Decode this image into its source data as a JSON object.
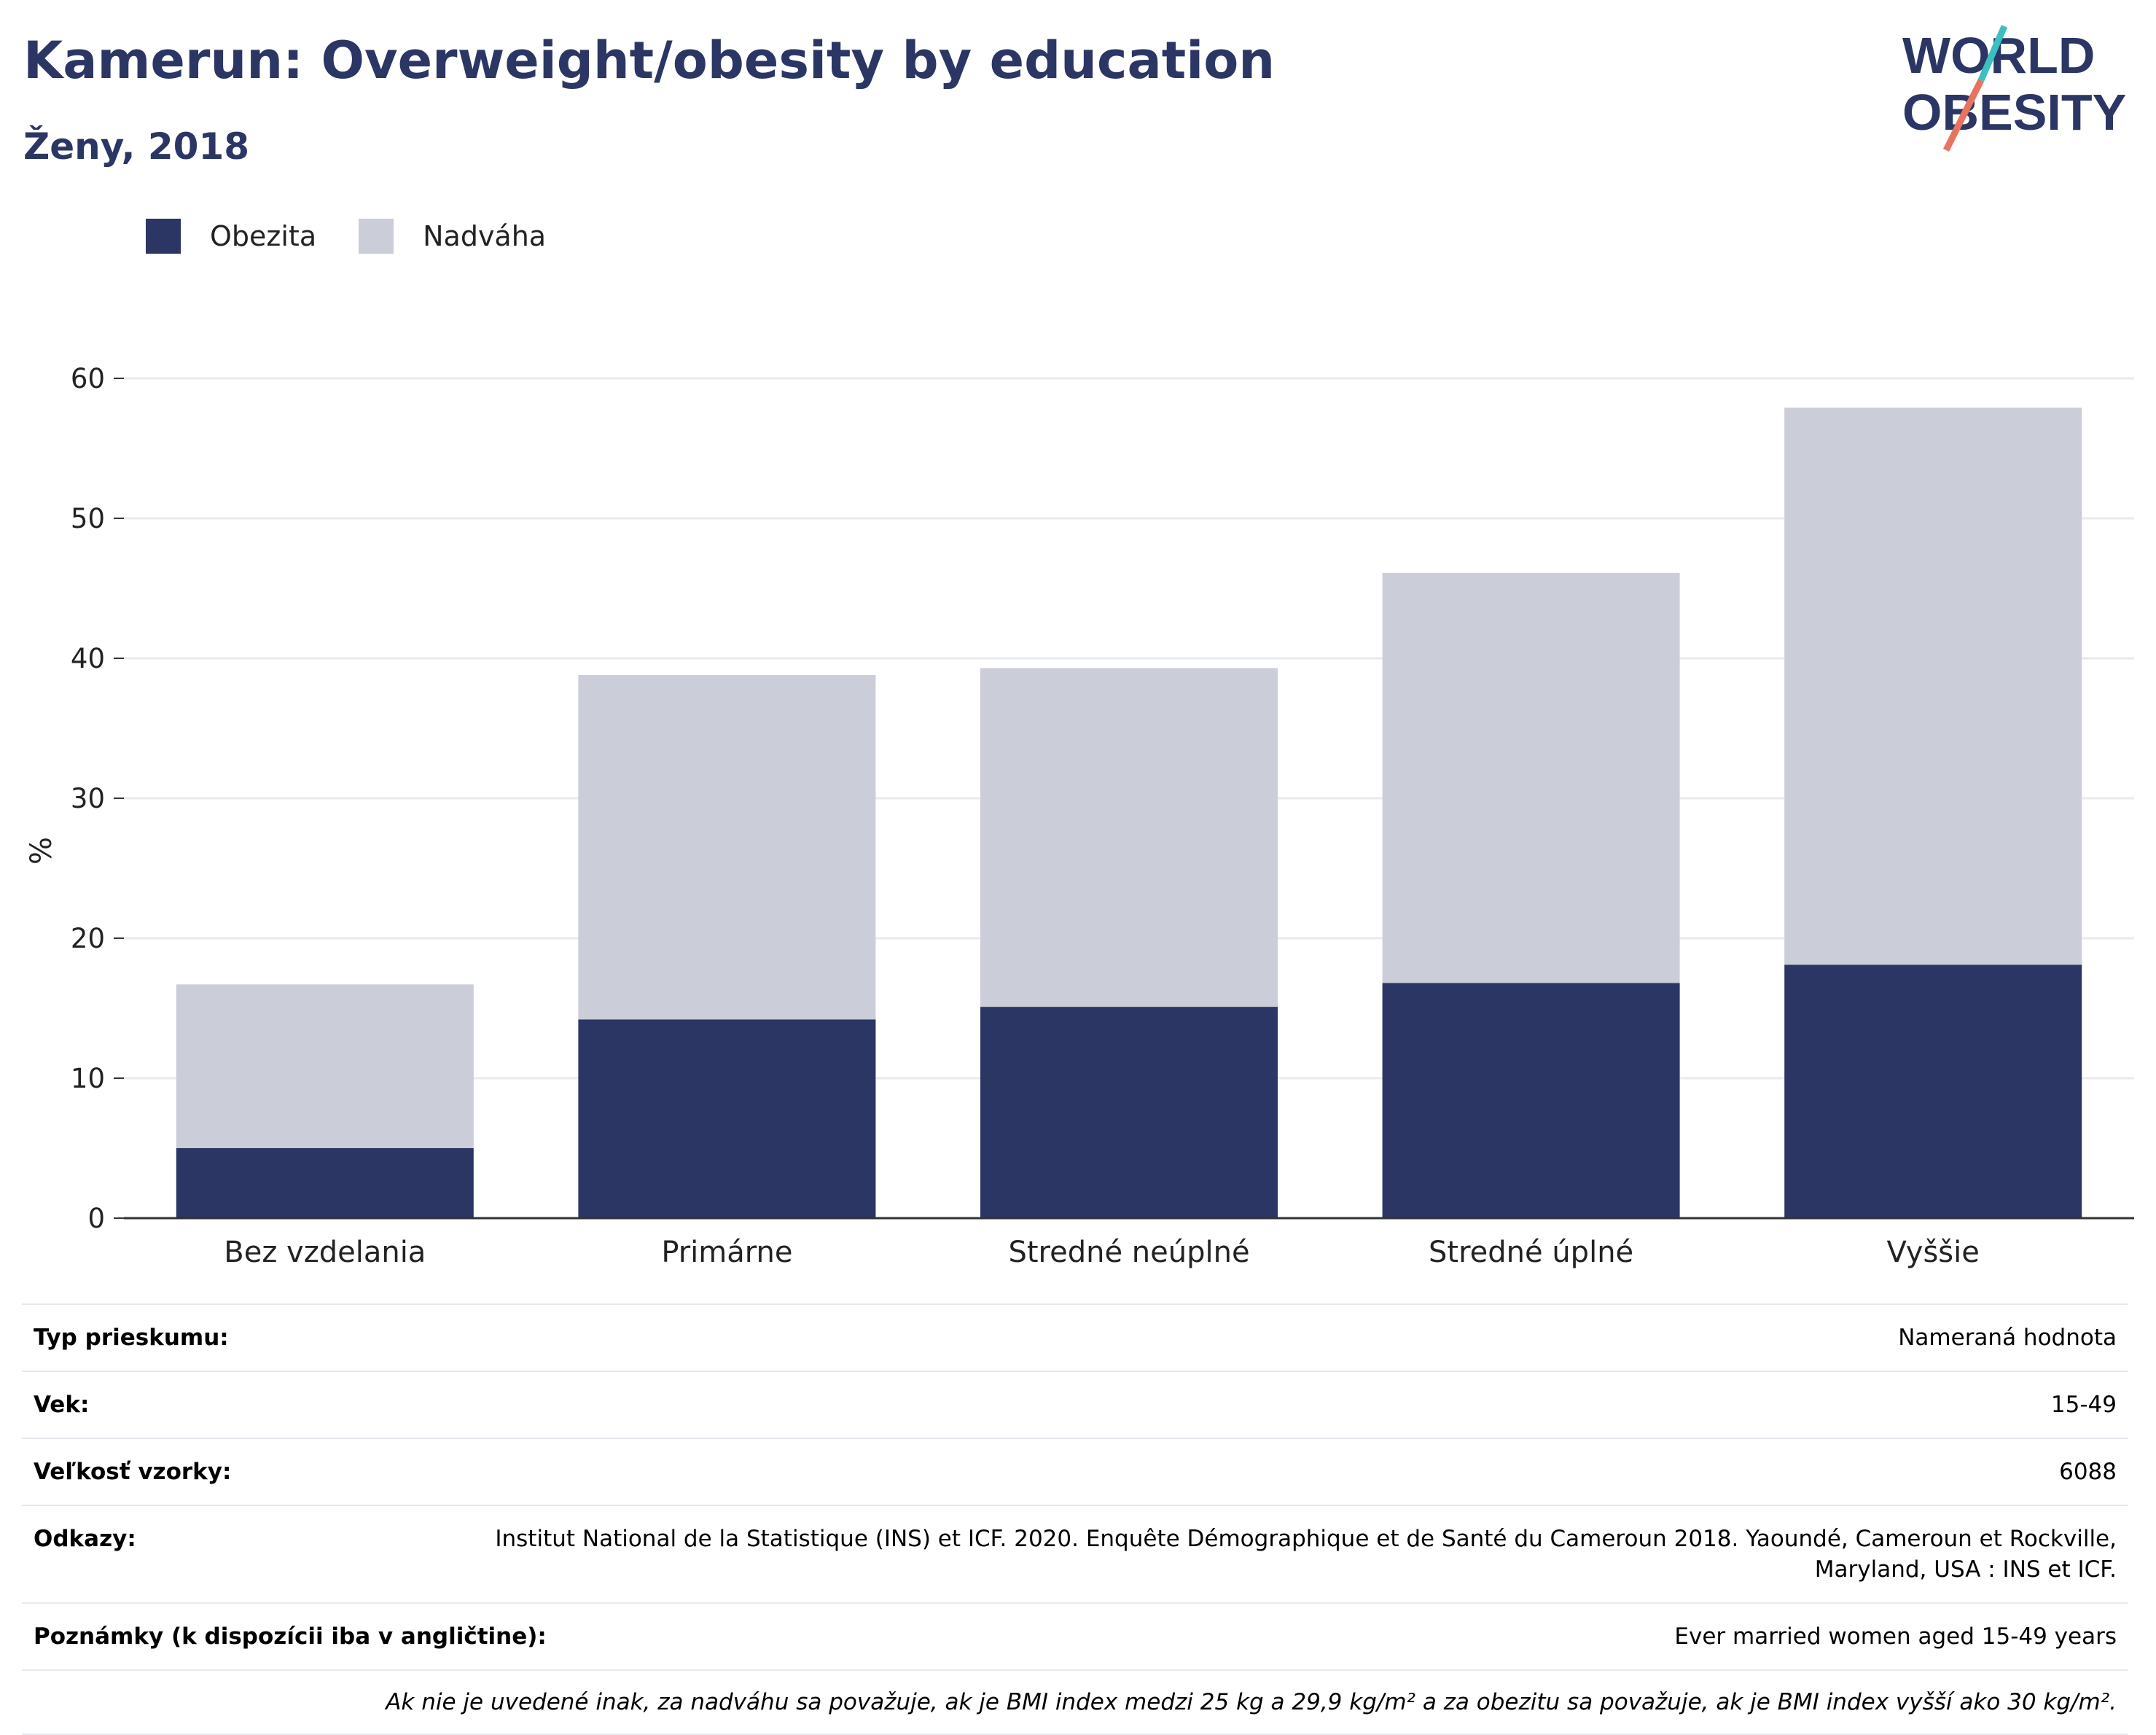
{
  "header": {
    "title": "Kamerun: Overweight/obesity by education",
    "subtitle": "Ženy, 2018"
  },
  "logo": {
    "line1": "WORLD",
    "line2": "OBESITY",
    "accent_colors": [
      "#e8735f",
      "#3bbfbf"
    ]
  },
  "legend": [
    {
      "label": "Obezita",
      "color": "#2b3664"
    },
    {
      "label": "Nadváha",
      "color": "#cbcdd9"
    }
  ],
  "chart_data": {
    "type": "bar",
    "stacked": true,
    "categories": [
      "Bez vzdelania",
      "Primárne",
      "Stredné neúplné",
      "Stredné úplné",
      "Vyššie"
    ],
    "series": [
      {
        "name": "Obezita",
        "color": "#2b3664",
        "values": [
          5.0,
          14.2,
          15.1,
          16.8,
          18.1
        ]
      },
      {
        "name": "Nadváha",
        "color": "#cbcdd9",
        "values": [
          11.7,
          24.6,
          24.2,
          29.3,
          39.8
        ]
      }
    ],
    "totals": [
      16.7,
      38.8,
      39.3,
      46.1,
      57.9
    ],
    "ylabel": "%",
    "ylim": [
      0,
      60
    ],
    "yticks": [
      "0",
      "10",
      "20",
      "30",
      "40",
      "50",
      "60"
    ],
    "grid": true,
    "legend_position": "top-left"
  },
  "info": [
    {
      "key": "Typ prieskumu:",
      "value": "Nameraná hodnota"
    },
    {
      "key": "Vek:",
      "value": "15-49"
    },
    {
      "key": "Veľkosť vzorky:",
      "value": "6088"
    },
    {
      "key": "Odkazy:",
      "value": "Institut National de la Statistique (INS) et ICF. 2020. Enquête Démographique et de Santé du Cameroun 2018. Yaoundé, Cameroun et Rockville, Maryland, USA : INS et ICF."
    },
    {
      "key": "Poznámky (k dispozícii iba v angličtine):",
      "value": "Ever married women aged 15-49 years"
    }
  ],
  "footnote": "Ak nie je uvedené inak, za nadváhu sa považuje, ak je BMI index medzi 25 kg a 29,9 kg/m² a za obezitu sa považuje, ak je BMI index vyšší ako 30 kg/m²."
}
